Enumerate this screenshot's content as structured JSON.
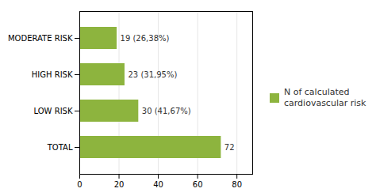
{
  "chart_data": {
    "type": "bar",
    "orientation": "horizontal",
    "categories": [
      "TOTAL",
      "LOW RISK",
      "HIGH RISK",
      "MODERATE RISK"
    ],
    "series": [
      {
        "name": "N of calculated\ncardiovascular risk",
        "color": "#8db43e",
        "values": [
          72,
          30,
          23,
          19
        ],
        "value_labels": [
          "72",
          "30 (41,67%)",
          "23 (31,95%)",
          "19 (26,38%)"
        ]
      }
    ],
    "xlim": [
      0,
      88
    ],
    "xticks": [
      0,
      20,
      40,
      60,
      80
    ],
    "grid": true,
    "legend": "right",
    "data_labels": true
  }
}
